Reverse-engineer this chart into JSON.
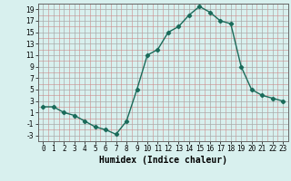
{
  "x": [
    0,
    1,
    2,
    3,
    4,
    5,
    6,
    7,
    8,
    9,
    10,
    11,
    12,
    13,
    14,
    15,
    16,
    17,
    18,
    19,
    20,
    21,
    22,
    23
  ],
  "y": [
    2,
    2,
    1,
    0.5,
    -0.5,
    -1.5,
    -2,
    -2.8,
    -0.5,
    5,
    11,
    12,
    15,
    16,
    18,
    19.5,
    18.5,
    17,
    16.5,
    9,
    5,
    4,
    3.5,
    3
  ],
  "line_color": "#1a6b5a",
  "marker": "D",
  "marker_size": 2.2,
  "bg_color": "#d8f0ee",
  "grid_color_major": "#aaaaaa",
  "grid_color_minor": "#cc8888",
  "xlabel": "Humidex (Indice chaleur)",
  "ylim": [
    -4,
    20
  ],
  "xlim": [
    -0.5,
    23.5
  ],
  "yticks": [
    -3,
    -1,
    1,
    3,
    5,
    7,
    9,
    11,
    13,
    15,
    17,
    19
  ],
  "xticks": [
    0,
    1,
    2,
    3,
    4,
    5,
    6,
    7,
    8,
    9,
    10,
    11,
    12,
    13,
    14,
    15,
    16,
    17,
    18,
    19,
    20,
    21,
    22,
    23
  ],
  "tick_fontsize": 5.5,
  "xlabel_fontsize": 7
}
